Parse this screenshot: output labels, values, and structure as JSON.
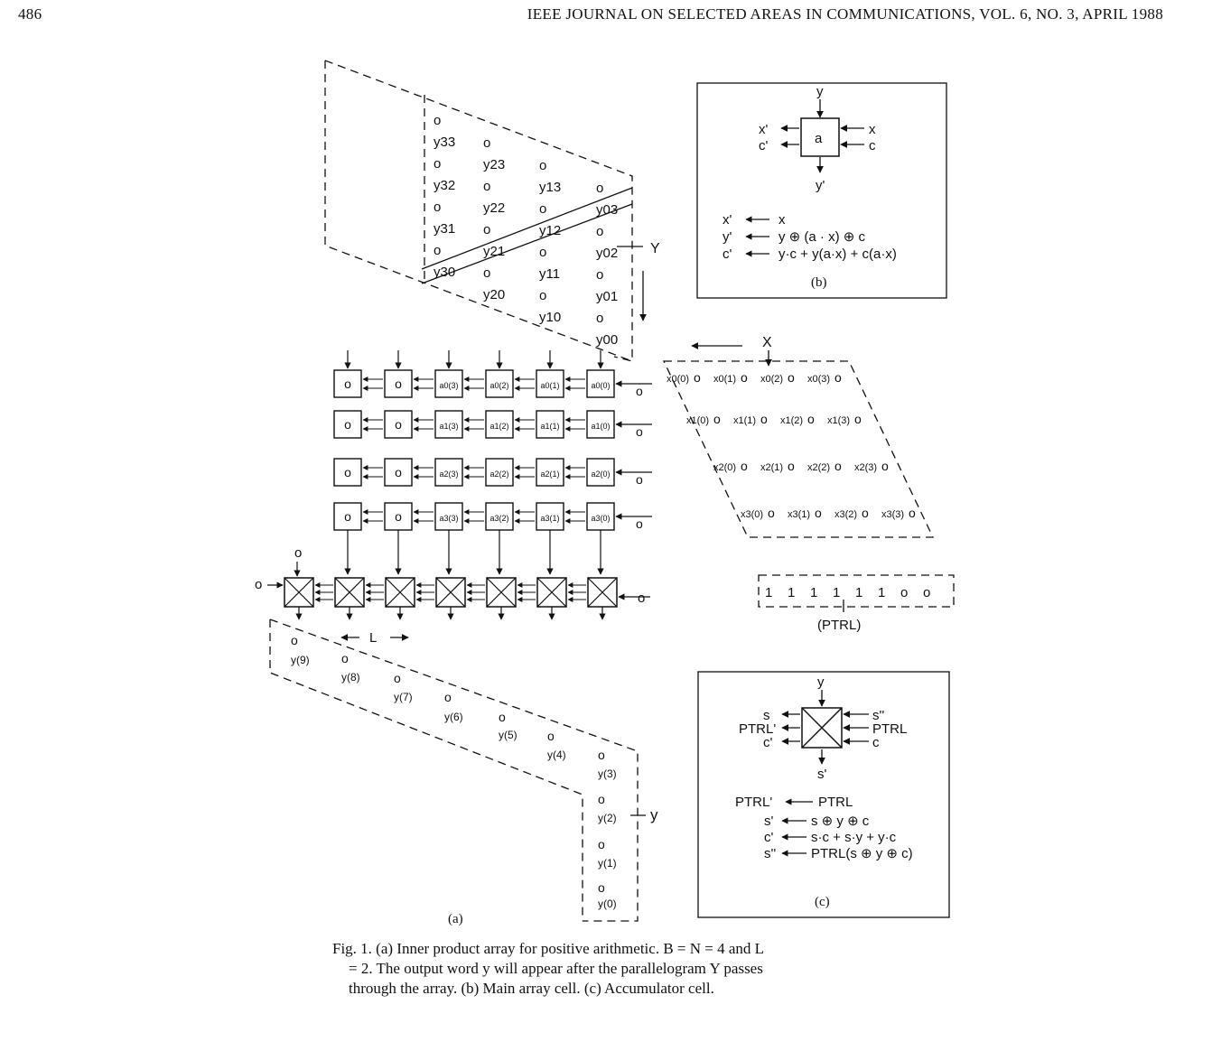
{
  "header": {
    "page_number": "486",
    "journal": "IEEE JOURNAL ON SELECTED AREAS IN COMMUNICATIONS, VOL. 6, NO. 3, APRIL 1988"
  },
  "panel_a": {
    "label": "(a)",
    "y_direction_label": "Y",
    "x_direction_label": "X",
    "L_label": "L",
    "y_output_label": "y",
    "zero": "o",
    "Y_parallelogram": [
      "o",
      "y33",
      "o",
      "y32",
      "o",
      "y31",
      "o",
      "y30",
      "o",
      "y23",
      "o",
      "y22",
      "o",
      "y21",
      "o",
      "y20",
      "o",
      "y13",
      "o",
      "y12",
      "o",
      "y11",
      "o",
      "y10",
      "o",
      "y03",
      "o",
      "y02",
      "o",
      "y01",
      "o",
      "y00"
    ],
    "cells": [
      [
        "o",
        "o",
        "a0(3)",
        "a0(2)",
        "a0(1)",
        "a0(0)"
      ],
      [
        "o",
        "o",
        "a1(3)",
        "a1(2)",
        "a1(1)",
        "a1(0)"
      ],
      [
        "o",
        "o",
        "a2(3)",
        "a2(2)",
        "a2(1)",
        "a2(0)"
      ],
      [
        "o",
        "o",
        "a3(3)",
        "a3(2)",
        "a3(1)",
        "a3(0)"
      ]
    ],
    "X_parallelogram": [
      [
        "x0(0)",
        "o",
        "x0(1)",
        "o",
        "x0(2)",
        "o",
        "x0(3)",
        "o"
      ],
      [
        "x1(0)",
        "o",
        "x1(1)",
        "o",
        "x1(2)",
        "o",
        "x1(3)",
        "o"
      ],
      [
        "x2(0)",
        "o",
        "x2(1)",
        "o",
        "x2(2)",
        "o",
        "x2(3)",
        "o"
      ],
      [
        "x3(0)",
        "o",
        "x3(1)",
        "o",
        "x3(2)",
        "o",
        "x3(3)",
        "o"
      ]
    ],
    "output_y": [
      "o",
      "y(9)",
      "o",
      "y(8)",
      "o",
      "y(7)",
      "o",
      "y(6)",
      "o",
      "y(5)",
      "o",
      "y(4)",
      "o",
      "y(3)",
      "o",
      "y(2)",
      "o",
      "y(1)",
      "o",
      "y(0)"
    ],
    "ptrl_values": [
      "1",
      "1",
      "1",
      "1",
      "1",
      "1",
      "o",
      "o"
    ],
    "ptrl_label": "(PTRL)"
  },
  "panel_b": {
    "label": "(b)",
    "cell_letter": "a",
    "inputs": [
      "y",
      "x",
      "c"
    ],
    "outputs": [
      "y'",
      "x'",
      "c'"
    ],
    "eq1_lhs": "x'",
    "eq1_rhs": "x",
    "eq2_lhs": "y'",
    "eq2_rhs": "y ⊕ (a · x) ⊕ c",
    "eq3_lhs": "c'",
    "eq3_rhs": "y·c + y(a·x) + c(a·x)"
  },
  "panel_c": {
    "label": "(c)",
    "top_input": "y",
    "left_labels": [
      "s",
      "PTRL'",
      "c'"
    ],
    "right_labels": [
      "s''",
      "PTRL",
      "c"
    ],
    "bottom_output": "s'",
    "eq1_lhs": "PTRL'",
    "eq1_rhs": "PTRL",
    "eq2_lhs": "s'",
    "eq2_rhs": "s ⊕ y ⊕ c",
    "eq3_lhs": "c'",
    "eq3_rhs": "s·c + s·y + y·c",
    "eq4_lhs": "s''",
    "eq4_rhs": "PTRL(s ⊕ y ⊕ c)"
  },
  "caption": {
    "line1": "Fig. 1.  (a) Inner product array for positive arithmetic. B = N = 4 and L",
    "line2": "= 2. The output word y will appear after the parallelogram Y passes",
    "line3": "through the array. (b) Main array cell. (c) Accumulator cell."
  },
  "colors": {
    "ink": "#111111",
    "paper": "#ffffff"
  }
}
